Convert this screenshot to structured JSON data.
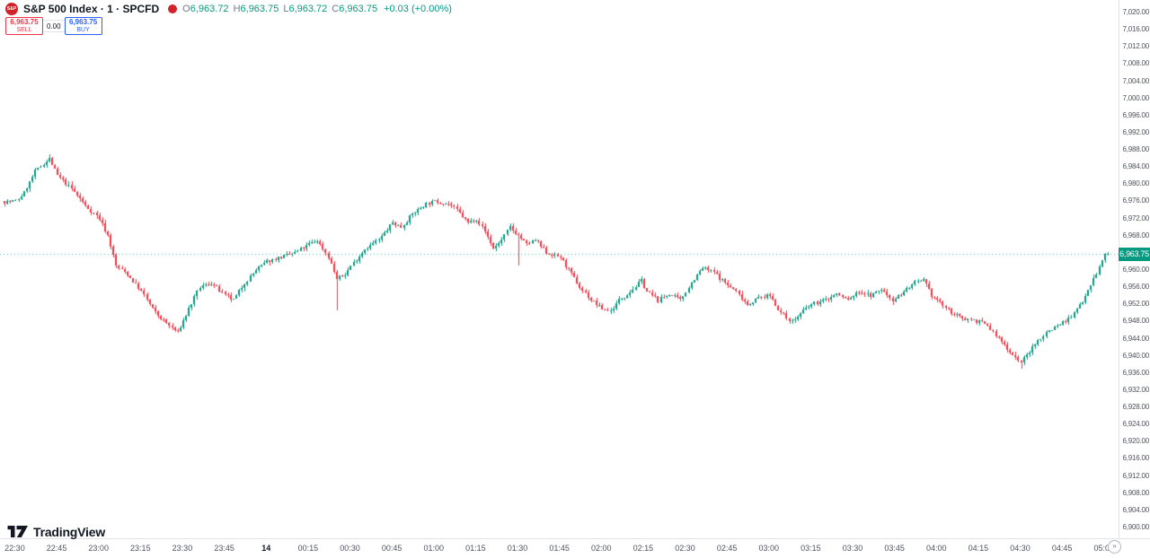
{
  "header": {
    "logo_text": "S&P",
    "symbol_title": "S&P 500 Index · 1 · SPCFD",
    "ohlc": {
      "open_label": "O",
      "open": "6,963.72",
      "high_label": "H",
      "high": "6,963.75",
      "low_label": "L",
      "low": "6,963.72",
      "close_label": "C",
      "close": "6,963.75",
      "change": "+0.03 (+0.00%)"
    },
    "order_panel": {
      "sell_price": "6,963.75",
      "sell_label": "SELL",
      "spread": "0.00",
      "buy_price": "6,963.75",
      "buy_label": "BUY"
    }
  },
  "footer": {
    "brand": "TradingView",
    "realtime_glyph": "»"
  },
  "price_axis": {
    "ticks": [
      7020,
      7016,
      7012,
      7008,
      7004,
      7000,
      6996,
      6992,
      6988,
      6984,
      6980,
      6976,
      6972,
      6968,
      6964,
      6960,
      6956,
      6952,
      6948,
      6944,
      6940,
      6936,
      6932,
      6928,
      6924,
      6920,
      6916,
      6912,
      6908,
      6904,
      6900
    ],
    "current_price_label": "6,963.75"
  },
  "time_axis": {
    "labels": [
      {
        "label": "22:30",
        "minute": 0
      },
      {
        "label": "22:45",
        "minute": 15
      },
      {
        "label": "23:00",
        "minute": 30
      },
      {
        "label": "23:15",
        "minute": 45
      },
      {
        "label": "23:30",
        "minute": 60
      },
      {
        "label": "23:45",
        "minute": 75
      },
      {
        "label": "14",
        "minute": 90,
        "date": true
      },
      {
        "label": "00:15",
        "minute": 105
      },
      {
        "label": "00:30",
        "minute": 120
      },
      {
        "label": "00:45",
        "minute": 135
      },
      {
        "label": "01:00",
        "minute": 150
      },
      {
        "label": "01:15",
        "minute": 165
      },
      {
        "label": "01:30",
        "minute": 180
      },
      {
        "label": "01:45",
        "minute": 195
      },
      {
        "label": "02:00",
        "minute": 210
      },
      {
        "label": "02:15",
        "minute": 225
      },
      {
        "label": "02:30",
        "minute": 240
      },
      {
        "label": "02:45",
        "minute": 255
      },
      {
        "label": "03:00",
        "minute": 270
      },
      {
        "label": "03:15",
        "minute": 285
      },
      {
        "label": "03:30",
        "minute": 300
      },
      {
        "label": "03:45",
        "minute": 315
      },
      {
        "label": "04:00",
        "minute": 330
      },
      {
        "label": "04:15",
        "minute": 345
      },
      {
        "label": "04:30",
        "minute": 360
      },
      {
        "label": "04:45",
        "minute": 375
      },
      {
        "label": "05:00",
        "minute": 390
      }
    ]
  },
  "chart_data": {
    "type": "candlestick",
    "title": "S&P 500 Index, 1-minute, SPCFD",
    "interval_minutes": 1,
    "ylim": [
      6900,
      7020
    ],
    "grid": false,
    "current_price": 6963.75,
    "colors": {
      "up": "#089981",
      "down": "#f23645",
      "axis_text": "#50535e",
      "sell": "#f23645",
      "buy": "#2962ff"
    },
    "anchors": [
      [
        0,
        6976
      ],
      [
        3,
        6978
      ],
      [
        7,
        6983
      ],
      [
        12,
        6986
      ],
      [
        15,
        6982
      ],
      [
        20,
        6979
      ],
      [
        25,
        6975
      ],
      [
        30,
        6972
      ],
      [
        33,
        6968
      ],
      [
        36,
        6961
      ],
      [
        40,
        6959
      ],
      [
        45,
        6955
      ],
      [
        50,
        6950
      ],
      [
        55,
        6947
      ],
      [
        58,
        6945.5
      ],
      [
        62,
        6951
      ],
      [
        66,
        6956
      ],
      [
        70,
        6957
      ],
      [
        75,
        6954
      ],
      [
        78,
        6953
      ],
      [
        82,
        6957
      ],
      [
        86,
        6960
      ],
      [
        90,
        6962
      ],
      [
        95,
        6963
      ],
      [
        100,
        6964
      ],
      [
        105,
        6966
      ],
      [
        108,
        6967
      ],
      [
        112,
        6963
      ],
      [
        115,
        6958
      ],
      [
        118,
        6959
      ],
      [
        120,
        6961
      ],
      [
        125,
        6965
      ],
      [
        130,
        6967
      ],
      [
        135,
        6971
      ],
      [
        138,
        6970
      ],
      [
        142,
        6973
      ],
      [
        147,
        6975.5
      ],
      [
        150,
        6976
      ],
      [
        155,
        6975.5
      ],
      [
        158,
        6974
      ],
      [
        162,
        6971
      ],
      [
        165,
        6972
      ],
      [
        168,
        6969
      ],
      [
        171,
        6965
      ],
      [
        174,
        6967
      ],
      [
        177,
        6970
      ],
      [
        180,
        6968
      ],
      [
        183,
        6966
      ],
      [
        186,
        6967
      ],
      [
        190,
        6964
      ],
      [
        195,
        6963
      ],
      [
        198,
        6960
      ],
      [
        202,
        6956
      ],
      [
        206,
        6953
      ],
      [
        210,
        6951
      ],
      [
        213,
        6950.5
      ],
      [
        216,
        6953
      ],
      [
        220,
        6955
      ],
      [
        224,
        6957.5
      ],
      [
        226,
        6955
      ],
      [
        230,
        6953
      ],
      [
        234,
        6954.5
      ],
      [
        238,
        6953
      ],
      [
        240,
        6955
      ],
      [
        243,
        6958
      ],
      [
        246,
        6960.5
      ],
      [
        250,
        6959.5
      ],
      [
        254,
        6957
      ],
      [
        258,
        6955
      ],
      [
        262,
        6952
      ],
      [
        266,
        6953.5
      ],
      [
        270,
        6954
      ],
      [
        274,
        6950
      ],
      [
        278,
        6948
      ],
      [
        282,
        6950.5
      ],
      [
        285,
        6952
      ],
      [
        290,
        6953
      ],
      [
        294,
        6954.5
      ],
      [
        298,
        6953
      ],
      [
        302,
        6955
      ],
      [
        306,
        6954
      ],
      [
        310,
        6955.5
      ],
      [
        314,
        6953
      ],
      [
        318,
        6955
      ],
      [
        322,
        6957
      ],
      [
        325,
        6957.5
      ],
      [
        328,
        6954
      ],
      [
        330,
        6953
      ],
      [
        334,
        6950.5
      ],
      [
        338,
        6949
      ],
      [
        342,
        6948.5
      ],
      [
        345,
        6948
      ],
      [
        348,
        6947
      ],
      [
        352,
        6944
      ],
      [
        356,
        6941
      ],
      [
        360,
        6938.5
      ],
      [
        363,
        6941
      ],
      [
        366,
        6943.5
      ],
      [
        370,
        6946
      ],
      [
        374,
        6947.5
      ],
      [
        378,
        6949
      ],
      [
        382,
        6953
      ],
      [
        386,
        6958
      ],
      [
        389,
        6962
      ],
      [
        390,
        6963.75
      ]
    ],
    "wick_events": [
      {
        "minute": 12,
        "high": 6987
      },
      {
        "minute": 115,
        "low": 6950.5
      },
      {
        "minute": 180,
        "low": 6961
      },
      {
        "minute": 360,
        "low": 6937
      }
    ],
    "noise": 0.45,
    "seed": 7
  }
}
